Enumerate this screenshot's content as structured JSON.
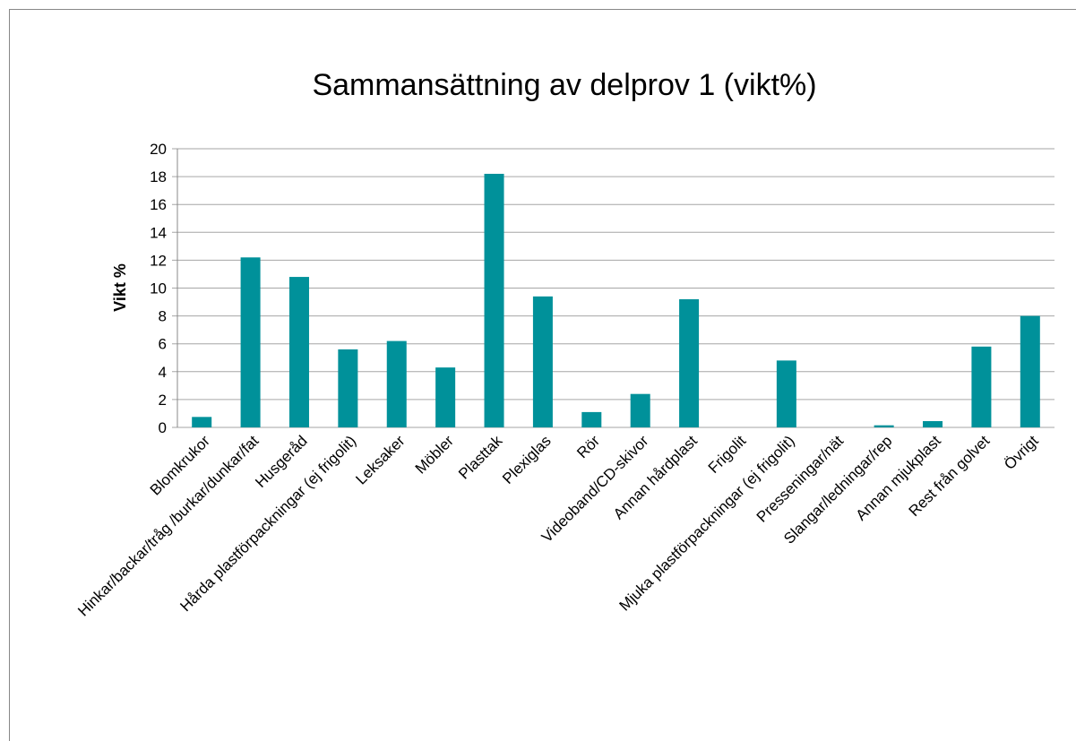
{
  "chart_data": {
    "type": "bar",
    "title": "Sammansättning av delprov 1 (vikt%)",
    "y_label": "Vikt %",
    "categories": [
      "Blomkrukor",
      "Hinkar/backar/tråg /burkar/dunkar/fat",
      "Husgeråd",
      "Hårda plastförpackningar (ej frigolit)",
      "Leksaker",
      "Möbler",
      "Plasttak",
      "Plexiglas",
      "Rör",
      "Videoband/CD-skivor",
      "Annan hårdplast",
      "Frigolit",
      "Mjuka plastförpackningar (ej frigolit)",
      "Presseningar/nät",
      "Slangar/ledningar/rep",
      "Annan mjukplast",
      "Rest från golvet",
      "Övrigt"
    ],
    "values": [
      0.75,
      12.2,
      10.8,
      5.6,
      6.2,
      4.3,
      18.2,
      9.4,
      1.1,
      2.4,
      9.2,
      0,
      4.8,
      0,
      0.15,
      0.45,
      5.8,
      8.0
    ],
    "color": "#00919a",
    "ylim": [
      0,
      20
    ],
    "yticks": [
      0,
      2,
      4,
      6,
      8,
      10,
      12,
      14,
      16,
      18,
      20
    ],
    "grid": true
  }
}
